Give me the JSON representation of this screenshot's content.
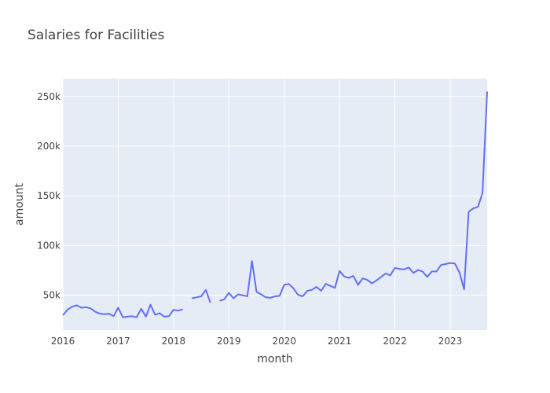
{
  "chart_data": {
    "type": "line",
    "title": "Salaries for Facilities",
    "xlabel": "month",
    "ylabel": "amount",
    "x_tick_labels": [
      "2016",
      "2017",
      "2018",
      "2019",
      "2020",
      "2021",
      "2022",
      "2023"
    ],
    "y_tick_labels": [
      "50k",
      "100k",
      "150k",
      "200k",
      "250k"
    ],
    "y_ticks": [
      50000,
      100000,
      150000,
      200000,
      250000
    ],
    "xlim": [
      "2016-01",
      "2023-09"
    ],
    "ylim": [
      15000,
      268000
    ],
    "grid": true,
    "colors": {
      "line": "#636efa",
      "plot_bg": "#e5ecf6",
      "grid": "#ffffff",
      "text": "#444444"
    },
    "series": [
      {
        "values": [
          [
            "2016-01",
            30000
          ],
          [
            "2016-02",
            35500
          ],
          [
            "2016-03",
            38500
          ],
          [
            "2016-04",
            40000
          ],
          [
            "2016-05",
            37500
          ],
          [
            "2016-06",
            38000
          ],
          [
            "2016-07",
            37000
          ],
          [
            "2016-08",
            33500
          ],
          [
            "2016-09",
            31500
          ],
          [
            "2016-10",
            31000
          ],
          [
            "2016-11",
            31500
          ],
          [
            "2016-12",
            29000
          ],
          [
            "2017-01",
            37500
          ],
          [
            "2017-02",
            28000
          ],
          [
            "2017-03",
            28500
          ],
          [
            "2017-04",
            29000
          ],
          [
            "2017-05",
            28000
          ],
          [
            "2017-06",
            36500
          ],
          [
            "2017-07",
            28500
          ],
          [
            "2017-08",
            40500
          ],
          [
            "2017-09",
            30500
          ],
          [
            "2017-10",
            32000
          ],
          [
            "2017-11",
            28500
          ],
          [
            "2017-12",
            29000
          ],
          [
            "2018-01",
            35500
          ],
          [
            "2018-02",
            34500
          ],
          [
            "2018-03",
            36000
          ],
          [
            "2018-04",
            null
          ],
          [
            "2018-05",
            47000
          ],
          [
            "2018-06",
            48000
          ],
          [
            "2018-07",
            49000
          ],
          [
            "2018-08",
            55500
          ],
          [
            "2018-09",
            42500
          ],
          [
            "2018-10",
            null
          ],
          [
            "2018-11",
            44500
          ],
          [
            "2018-12",
            46000
          ],
          [
            "2019-01",
            52500
          ],
          [
            "2019-02",
            47000
          ],
          [
            "2019-03",
            51000
          ],
          [
            "2019-04",
            50000
          ],
          [
            "2019-05",
            49000
          ],
          [
            "2019-06",
            84500
          ],
          [
            "2019-07",
            53500
          ],
          [
            "2019-08",
            51000
          ],
          [
            "2019-09",
            48000
          ],
          [
            "2019-10",
            47500
          ],
          [
            "2019-11",
            49000
          ],
          [
            "2019-12",
            49500
          ],
          [
            "2020-01",
            60500
          ],
          [
            "2020-02",
            61500
          ],
          [
            "2020-03",
            57000
          ],
          [
            "2020-04",
            50500
          ],
          [
            "2020-05",
            49000
          ],
          [
            "2020-06",
            54500
          ],
          [
            "2020-07",
            55500
          ],
          [
            "2020-08",
            58500
          ],
          [
            "2020-09",
            54500
          ],
          [
            "2020-10",
            61500
          ],
          [
            "2020-11",
            59500
          ],
          [
            "2020-12",
            57500
          ],
          [
            "2021-01",
            74500
          ],
          [
            "2021-02",
            69000
          ],
          [
            "2021-03",
            67500
          ],
          [
            "2021-04",
            69500
          ],
          [
            "2021-05",
            60500
          ],
          [
            "2021-06",
            67000
          ],
          [
            "2021-07",
            65500
          ],
          [
            "2021-08",
            62000
          ],
          [
            "2021-09",
            65000
          ],
          [
            "2021-10",
            68500
          ],
          [
            "2021-11",
            72000
          ],
          [
            "2021-12",
            70000
          ],
          [
            "2022-01",
            77500
          ],
          [
            "2022-02",
            76500
          ],
          [
            "2022-03",
            76000
          ],
          [
            "2022-04",
            78000
          ],
          [
            "2022-05",
            72500
          ],
          [
            "2022-06",
            75500
          ],
          [
            "2022-07",
            74000
          ],
          [
            "2022-08",
            68500
          ],
          [
            "2022-09",
            74000
          ],
          [
            "2022-10",
            74000
          ],
          [
            "2022-11",
            80500
          ],
          [
            "2022-12",
            81500
          ],
          [
            "2023-01",
            82500
          ],
          [
            "2023-02",
            82000
          ],
          [
            "2023-03",
            73000
          ],
          [
            "2023-04",
            56000
          ],
          [
            "2023-05",
            134000
          ],
          [
            "2023-06",
            137500
          ],
          [
            "2023-07",
            139000
          ],
          [
            "2023-08",
            153000
          ],
          [
            "2023-09",
            255000
          ]
        ]
      }
    ]
  }
}
